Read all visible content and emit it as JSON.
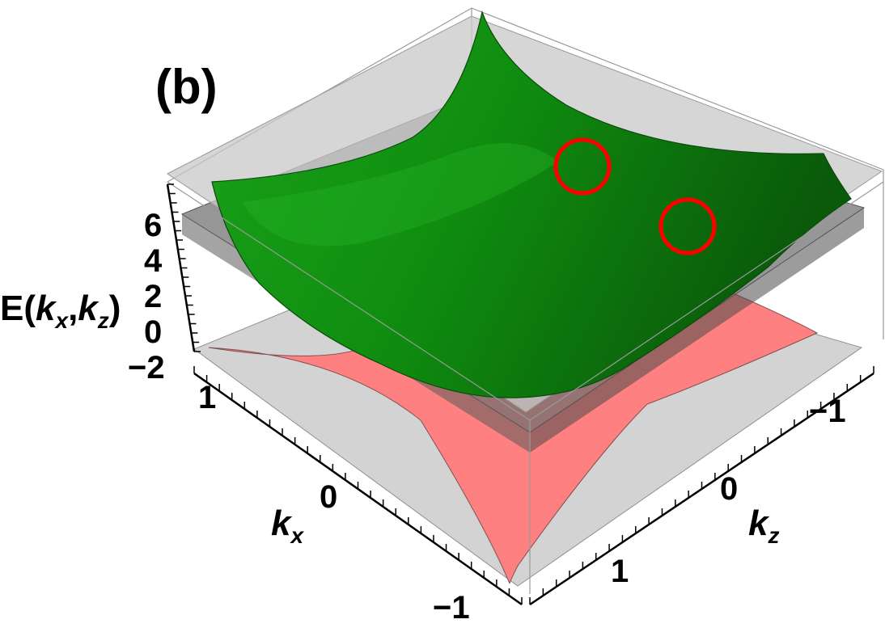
{
  "panel_label": "(b)",
  "chart_data": {
    "type": "surface3d",
    "title": "",
    "zlabel_main": "E(",
    "zlabel_k1": "k",
    "zlabel_sub1": "x",
    "zlabel_comma": ",",
    "zlabel_k2": "k",
    "zlabel_sub2": "z",
    "zlabel_close": ")",
    "xlabel_main": "k",
    "xlabel_sub": "x",
    "ylabel_main": "k",
    "ylabel_sub": "z",
    "z_ticks": [
      "6",
      "4",
      "2",
      "0",
      "−2"
    ],
    "kx_ticks": [
      "1",
      "0",
      "−1"
    ],
    "kz_ticks": [
      "−1",
      "0",
      "1"
    ],
    "kx_range": [
      -1.3,
      1.3
    ],
    "kz_range": [
      -1.3,
      1.3
    ],
    "z_range": [
      -2,
      7
    ],
    "surfaces": [
      {
        "name": "upper band",
        "color": "#1e9e1e",
        "shape": "saddle",
        "E_at_origin": 1.5,
        "E_corner_max": 7,
        "E_edge_min": 1.0
      },
      {
        "name": "lower band",
        "color": "#ff7f7f",
        "shape": "inverted saddle",
        "E_at_origin": 1.0,
        "E_min": -2
      },
      {
        "name": "middle plane",
        "color": "#808080",
        "shape": "flat",
        "E": 5.5
      }
    ],
    "markers": [
      {
        "type": "circle",
        "color": "#ff0000"
      },
      {
        "type": "circle",
        "color": "#ff0000"
      }
    ]
  }
}
